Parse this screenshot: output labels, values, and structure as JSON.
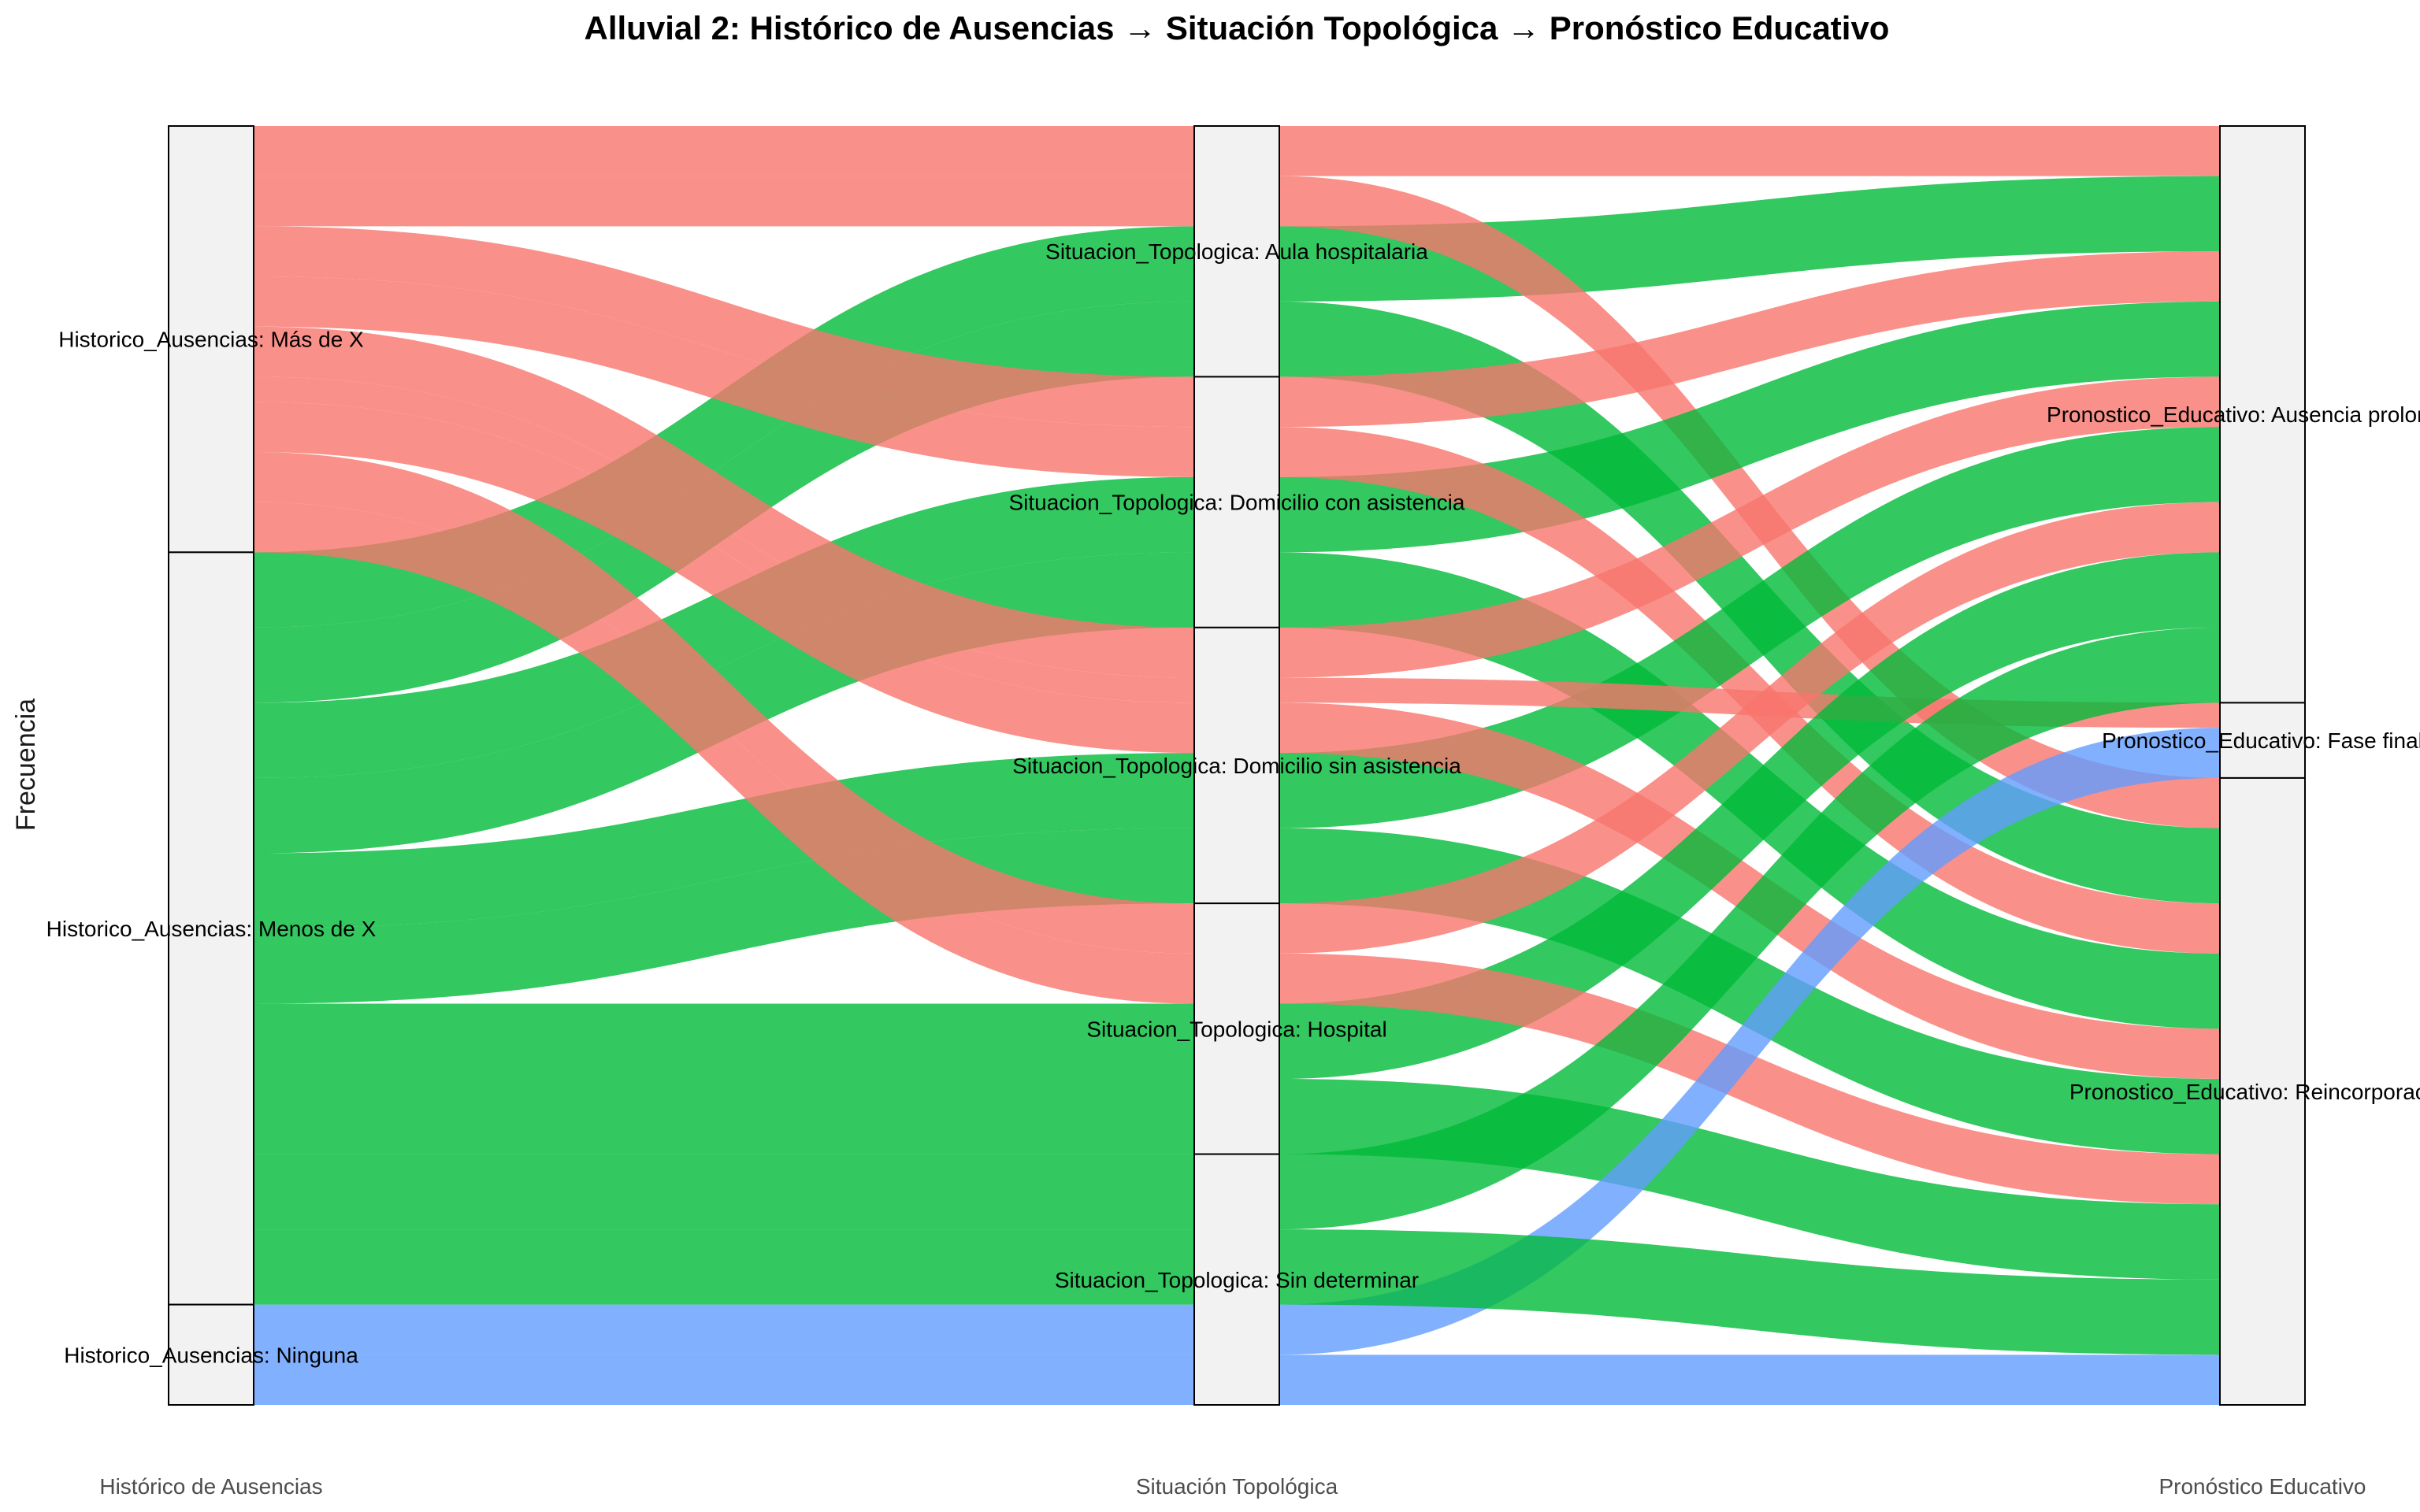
{
  "chart_data": {
    "type": "alluvial",
    "title": "Alluvial 2: Histórico de Ausencias → Situación Topológica → Pronóstico Educativo",
    "ylabel": "Frecuencia",
    "axes": [
      "Histórico de Ausencias",
      "Situación Topológica",
      "Pronóstico Educativo"
    ],
    "strata": [
      [
        "Historico_Ausencias: Más de X",
        "Historico_Ausencias: Menos de X",
        "Historico_Ausencias: Ninguna"
      ],
      [
        "Situacion_Topologica: Aula hospitalaria",
        "Situacion_Topologica: Domicilio con asistencia",
        "Situacion_Topologica: Domicilio sin asistencia",
        "Situacion_Topologica: Hospital",
        "Situacion_Topologica: Sin determinar"
      ],
      [
        "Pronostico_Educativo: Ausencia prolongada",
        "Pronostico_Educativo: Fase final",
        "Pronostico_Educativo: Reincorporación"
      ]
    ],
    "fill_legend": [
      "Más de X",
      "Menos de X",
      "Ninguna"
    ],
    "colors": {
      "Más de X": "#F8766D",
      "Menos de X": "#00BA38",
      "Ninguna": "#619CFF"
    },
    "flows": [
      {
        "fill": "Más de X",
        "path": [
          0,
          0,
          0
        ],
        "count": 1
      },
      {
        "fill": "Menos de X",
        "path": [
          1,
          0,
          0
        ],
        "count": 1.5
      },
      {
        "fill": "Más de X",
        "path": [
          0,
          0,
          2
        ],
        "count": 1
      },
      {
        "fill": "Menos de X",
        "path": [
          1,
          0,
          2
        ],
        "count": 1.5
      },
      {
        "fill": "Más de X",
        "path": [
          0,
          1,
          0
        ],
        "count": 1
      },
      {
        "fill": "Menos de X",
        "path": [
          1,
          1,
          0
        ],
        "count": 1.5
      },
      {
        "fill": "Más de X",
        "path": [
          0,
          1,
          2
        ],
        "count": 1
      },
      {
        "fill": "Menos de X",
        "path": [
          1,
          1,
          2
        ],
        "count": 1.5
      },
      {
        "fill": "Más de X",
        "path": [
          0,
          2,
          0
        ],
        "count": 1
      },
      {
        "fill": "Menos de X",
        "path": [
          1,
          2,
          0
        ],
        "count": 1.5
      },
      {
        "fill": "Más de X",
        "path": [
          0,
          2,
          1
        ],
        "count": 0.5
      },
      {
        "fill": "Más de X",
        "path": [
          0,
          2,
          2
        ],
        "count": 1
      },
      {
        "fill": "Menos de X",
        "path": [
          1,
          2,
          2
        ],
        "count": 1.5
      },
      {
        "fill": "Más de X",
        "path": [
          0,
          3,
          0
        ],
        "count": 1
      },
      {
        "fill": "Menos de X",
        "path": [
          1,
          3,
          0
        ],
        "count": 1.5
      },
      {
        "fill": "Más de X",
        "path": [
          0,
          3,
          2
        ],
        "count": 1
      },
      {
        "fill": "Menos de X",
        "path": [
          1,
          3,
          2
        ],
        "count": 1.5
      },
      {
        "fill": "Menos de X",
        "path": [
          1,
          4,
          0
        ],
        "count": 1.5
      },
      {
        "fill": "Ninguna",
        "path": [
          2,
          4,
          1
        ],
        "count": 1
      },
      {
        "fill": "Menos de X",
        "path": [
          1,
          4,
          2
        ],
        "count": 1.5
      },
      {
        "fill": "Ninguna",
        "path": [
          2,
          4,
          2
        ],
        "count": 1
      }
    ]
  }
}
